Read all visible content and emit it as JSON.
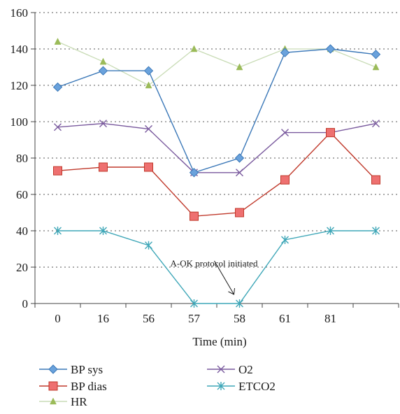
{
  "chart_data": {
    "type": "line",
    "categories": [
      "0",
      "16",
      "56",
      "57",
      "58",
      "61",
      "81",
      ""
    ],
    "xlabel": "Time (min)",
    "ylabel": "",
    "ylim": [
      0,
      160
    ],
    "yticks": [
      0,
      20,
      40,
      60,
      80,
      100,
      120,
      140,
      160
    ],
    "grid": "horizontal dashed",
    "legend_position": "bottom",
    "series": [
      {
        "name": "BP sys",
        "values": [
          119,
          128,
          128,
          72,
          80,
          138,
          140,
          137
        ],
        "color": "#3b78b8",
        "marker": "diamond",
        "marker_fill": "#6aa2dc"
      },
      {
        "name": "BP dias",
        "values": [
          73,
          75,
          75,
          48,
          50,
          68,
          94,
          68
        ],
        "color": "#c0392b",
        "marker": "square",
        "marker_fill": "#ee7070"
      },
      {
        "name": "HR",
        "values": [
          144,
          133,
          120,
          140,
          130,
          140,
          140,
          130
        ],
        "color": "#c9dcb6",
        "marker": "triangle",
        "marker_fill": "#9bbb59"
      },
      {
        "name": "O2",
        "values": [
          97,
          99,
          96,
          72,
          72,
          94,
          94,
          99
        ],
        "color": "#7a5a9e",
        "marker": "x",
        "marker_fill": "#7a5a9e"
      },
      {
        "name": "ETCO2",
        "values": [
          40,
          40,
          32,
          0,
          0,
          35,
          40,
          40
        ],
        "color": "#3fa7b8",
        "marker": "star",
        "marker_fill": "#3fa7b8"
      }
    ],
    "annotations": [
      {
        "text": "A-OK protocol initiated",
        "arrow_to_category": "58",
        "arrow_to_value": 5
      }
    ]
  }
}
